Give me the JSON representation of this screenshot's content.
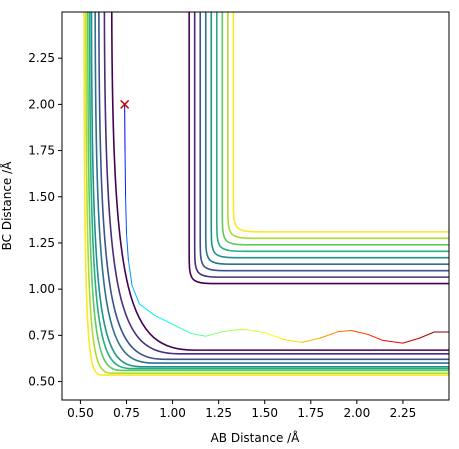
{
  "chart_data": {
    "type": "contour",
    "title": "",
    "xlabel": "AB Distance /Å",
    "ylabel": "BC Distance /Å",
    "xlim": [
      0.4,
      2.5
    ],
    "ylim": [
      0.4,
      2.5
    ],
    "xticks": [
      "0.50",
      "0.75",
      "1.00",
      "1.25",
      "1.50",
      "1.75",
      "2.00",
      "2.25"
    ],
    "yticks": [
      "0.50",
      "0.75",
      "1.00",
      "1.25",
      "1.50",
      "1.75",
      "2.00",
      "2.25"
    ],
    "colormap": "viridis",
    "contour_levels": [
      {
        "color": "#440154",
        "x_asymptote": 0.67,
        "y_asymptote": 0.67
      },
      {
        "color": "#472d7b",
        "x_asymptote": 0.63,
        "y_asymptote": 0.65
      },
      {
        "color": "#3b528b",
        "x_asymptote": 0.6,
        "y_asymptote": 0.62
      },
      {
        "color": "#2c728e",
        "x_asymptote": 0.58,
        "y_asymptote": 0.6
      },
      {
        "color": "#21918c",
        "x_asymptote": 0.56,
        "y_asymptote": 0.58
      },
      {
        "color": "#28ae80",
        "x_asymptote": 0.55,
        "y_asymptote": 0.57
      },
      {
        "color": "#5ec962",
        "x_asymptote": 0.54,
        "y_asymptote": 0.56
      },
      {
        "color": "#addc30",
        "x_asymptote": 0.53,
        "y_asymptote": 0.545
      },
      {
        "color": "#fde725",
        "x_asymptote": 0.52,
        "y_asymptote": 0.535
      }
    ],
    "marker": {
      "symbol": "x",
      "x": 0.74,
      "y": 2.0,
      "color": "#cc0000"
    },
    "trajectory": {
      "points": [
        [
          0.74,
          2.0
        ],
        [
          0.742,
          1.75
        ],
        [
          0.745,
          1.5
        ],
        [
          0.75,
          1.3
        ],
        [
          0.76,
          1.16
        ],
        [
          0.78,
          1.02
        ],
        [
          0.82,
          0.92
        ],
        [
          0.9,
          0.86
        ],
        [
          1.0,
          0.81
        ],
        [
          1.1,
          0.76
        ],
        [
          1.18,
          0.745
        ],
        [
          1.27,
          0.77
        ],
        [
          1.38,
          0.783
        ],
        [
          1.5,
          0.765
        ],
        [
          1.6,
          0.728
        ],
        [
          1.7,
          0.712
        ],
        [
          1.8,
          0.735
        ],
        [
          1.9,
          0.77
        ],
        [
          1.97,
          0.776
        ],
        [
          2.06,
          0.755
        ],
        [
          2.14,
          0.723
        ],
        [
          2.25,
          0.708
        ],
        [
          2.34,
          0.735
        ],
        [
          2.42,
          0.768
        ],
        [
          2.5,
          0.768
        ]
      ],
      "colormap": "jet"
    }
  }
}
